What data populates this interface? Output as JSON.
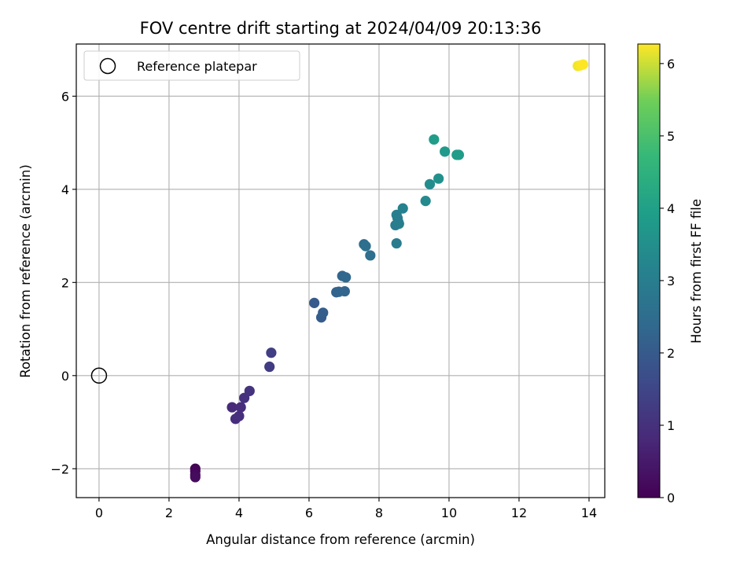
{
  "chart_data": {
    "type": "scatter",
    "title": "FOV centre drift starting at 2024/04/09 20:13:36",
    "xlabel": "Angular distance from reference (arcmin)",
    "ylabel": "Rotation from reference (arcmin)",
    "colorbar_label": "Hours from first FF file",
    "xlim": [
      -0.65,
      14.45
    ],
    "ylim": [
      -2.62,
      7.12
    ],
    "clim": [
      0,
      6.27
    ],
    "xticks": [
      0,
      2,
      4,
      6,
      8,
      10,
      12,
      14
    ],
    "xtick_labels": [
      "0",
      "2",
      "4",
      "6",
      "8",
      "10",
      "12",
      "14"
    ],
    "yticks": [
      -2,
      0,
      2,
      4,
      6
    ],
    "ytick_labels": [
      "−2",
      "0",
      "2",
      "4",
      "6"
    ],
    "cticks": [
      0,
      1,
      2,
      3,
      4,
      5,
      6
    ],
    "ctick_labels": [
      "0",
      "1",
      "2",
      "3",
      "4",
      "5",
      "6"
    ],
    "colormap": "viridis",
    "grid": true,
    "legend_position": "top-left",
    "legend_entries": [
      "Reference platepar"
    ],
    "reference_point": {
      "x": 0,
      "y": 0
    },
    "points": [
      {
        "x": 2.75,
        "y": -2.0,
        "t": 0.05
      },
      {
        "x": 2.75,
        "y": -2.05,
        "t": 0.1
      },
      {
        "x": 2.75,
        "y": -2.13,
        "t": 0.15
      },
      {
        "x": 2.75,
        "y": -2.18,
        "t": 0.2
      },
      {
        "x": 3.8,
        "y": -0.68,
        "t": 0.85
      },
      {
        "x": 3.9,
        "y": -0.93,
        "t": 0.9
      },
      {
        "x": 4.0,
        "y": -0.87,
        "t": 0.95
      },
      {
        "x": 4.05,
        "y": -0.68,
        "t": 0.9
      },
      {
        "x": 4.15,
        "y": -0.48,
        "t": 1.0
      },
      {
        "x": 4.3,
        "y": -0.33,
        "t": 1.05
      },
      {
        "x": 4.87,
        "y": 0.19,
        "t": 1.25
      },
      {
        "x": 4.92,
        "y": 0.49,
        "t": 1.3
      },
      {
        "x": 6.15,
        "y": 1.56,
        "t": 2.0
      },
      {
        "x": 6.35,
        "y": 1.25,
        "t": 2.05
      },
      {
        "x": 6.4,
        "y": 1.35,
        "t": 2.1
      },
      {
        "x": 6.78,
        "y": 1.79,
        "t": 2.2
      },
      {
        "x": 6.85,
        "y": 1.8,
        "t": 2.25
      },
      {
        "x": 6.95,
        "y": 2.14,
        "t": 2.3
      },
      {
        "x": 7.02,
        "y": 1.81,
        "t": 2.3
      },
      {
        "x": 7.05,
        "y": 2.11,
        "t": 2.35
      },
      {
        "x": 7.57,
        "y": 2.82,
        "t": 2.5
      },
      {
        "x": 7.62,
        "y": 2.78,
        "t": 2.55
      },
      {
        "x": 7.75,
        "y": 2.58,
        "t": 2.6
      },
      {
        "x": 8.47,
        "y": 3.23,
        "t": 2.95
      },
      {
        "x": 8.5,
        "y": 2.84,
        "t": 2.95
      },
      {
        "x": 8.5,
        "y": 3.45,
        "t": 3.0
      },
      {
        "x": 8.55,
        "y": 3.3,
        "t": 3.0
      },
      {
        "x": 8.57,
        "y": 3.26,
        "t": 3.05
      },
      {
        "x": 8.53,
        "y": 3.38,
        "t": 3.0
      },
      {
        "x": 8.68,
        "y": 3.59,
        "t": 3.1
      },
      {
        "x": 9.33,
        "y": 3.75,
        "t": 3.35
      },
      {
        "x": 9.45,
        "y": 4.11,
        "t": 3.45
      },
      {
        "x": 9.57,
        "y": 5.07,
        "t": 3.9
      },
      {
        "x": 9.7,
        "y": 4.23,
        "t": 3.55
      },
      {
        "x": 9.88,
        "y": 4.81,
        "t": 3.8
      },
      {
        "x": 10.22,
        "y": 4.74,
        "t": 3.85
      },
      {
        "x": 10.28,
        "y": 4.74,
        "t": 3.85
      },
      {
        "x": 13.68,
        "y": 6.65,
        "t": 6.2
      },
      {
        "x": 13.75,
        "y": 6.66,
        "t": 6.25
      },
      {
        "x": 13.83,
        "y": 6.68,
        "t": 6.27
      }
    ]
  }
}
